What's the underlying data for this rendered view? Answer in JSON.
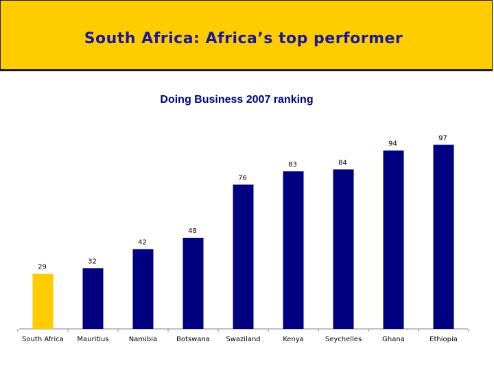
{
  "header": {
    "title": "South Africa:  Africa’s top performer"
  },
  "colors": {
    "title_band": "#ffcc00",
    "highlight_bar": "#ffcc00",
    "default_bar": "#000080",
    "title_text": "#1a1a99"
  },
  "chart_data": {
    "type": "bar",
    "title": "Doing Business 2007 ranking",
    "xlabel": "",
    "ylabel": "",
    "categories": [
      "South Africa",
      "Mauritius",
      "Namibia",
      "Botswana",
      "Swaziland",
      "Kenya",
      "Seychelles",
      "Ghana",
      "Ethiopia"
    ],
    "values": [
      29,
      32,
      42,
      48,
      76,
      83,
      84,
      94,
      97
    ],
    "highlight_index": 0,
    "ylim": [
      0,
      100
    ],
    "grid": false,
    "legend": "none"
  }
}
